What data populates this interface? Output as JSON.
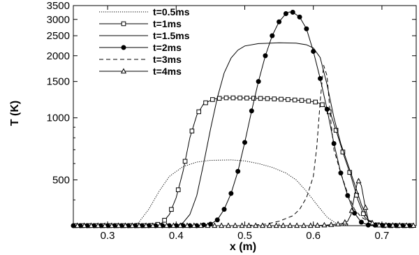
{
  "chart_data": {
    "type": "line",
    "xlabel": "x (m)",
    "ylabel": "T (K)",
    "xlim": [
      0.25,
      0.75
    ],
    "ylim": [
      300,
      3500
    ],
    "yscale": "log",
    "x_ticks": [
      0.3,
      0.4,
      0.5,
      0.6,
      0.7
    ],
    "y_ticks": [
      500,
      1000,
      1500,
      2000,
      2500,
      3000,
      3500
    ],
    "legend_position": "top-left",
    "grid": false,
    "series": [
      {
        "name": "t=0.5ms",
        "style": "dotted",
        "marker": "none",
        "points": [
          [
            0.25,
            300
          ],
          [
            0.33,
            300
          ],
          [
            0.345,
            310
          ],
          [
            0.36,
            360
          ],
          [
            0.375,
            440
          ],
          [
            0.39,
            520
          ],
          [
            0.41,
            580
          ],
          [
            0.43,
            610
          ],
          [
            0.45,
            622
          ],
          [
            0.48,
            625
          ],
          [
            0.5,
            618
          ],
          [
            0.52,
            600
          ],
          [
            0.54,
            575
          ],
          [
            0.56,
            540
          ],
          [
            0.575,
            500
          ],
          [
            0.59,
            440
          ],
          [
            0.605,
            380
          ],
          [
            0.62,
            330
          ],
          [
            0.635,
            305
          ],
          [
            0.65,
            300
          ],
          [
            0.75,
            300
          ]
        ]
      },
      {
        "name": "t=1ms",
        "style": "solid",
        "marker": "square",
        "points": [
          [
            0.25,
            300
          ],
          [
            0.36,
            300
          ],
          [
            0.37,
            302
          ],
          [
            0.38,
            310
          ],
          [
            0.39,
            340
          ],
          [
            0.4,
            410
          ],
          [
            0.41,
            550
          ],
          [
            0.42,
            800
          ],
          [
            0.43,
            1030
          ],
          [
            0.44,
            1170
          ],
          [
            0.455,
            1235
          ],
          [
            0.47,
            1250
          ],
          [
            0.5,
            1248
          ],
          [
            0.53,
            1240
          ],
          [
            0.56,
            1228
          ],
          [
            0.59,
            1210
          ],
          [
            0.605,
            1190
          ],
          [
            0.615,
            1150
          ],
          [
            0.625,
            1050
          ],
          [
            0.635,
            830
          ],
          [
            0.645,
            650
          ],
          [
            0.655,
            520
          ],
          [
            0.665,
            400
          ],
          [
            0.675,
            330
          ],
          [
            0.685,
            305
          ],
          [
            0.7,
            300
          ],
          [
            0.75,
            300
          ]
        ]
      },
      {
        "name": "t=1.5ms",
        "style": "solid",
        "marker": "none",
        "points": [
          [
            0.25,
            300
          ],
          [
            0.4,
            300
          ],
          [
            0.41,
            310
          ],
          [
            0.42,
            340
          ],
          [
            0.43,
            420
          ],
          [
            0.44,
            600
          ],
          [
            0.45,
            880
          ],
          [
            0.46,
            1250
          ],
          [
            0.47,
            1650
          ],
          [
            0.48,
            1950
          ],
          [
            0.49,
            2130
          ],
          [
            0.5,
            2230
          ],
          [
            0.52,
            2290
          ],
          [
            0.55,
            2310
          ],
          [
            0.575,
            2300
          ],
          [
            0.59,
            2260
          ],
          [
            0.6,
            2180
          ],
          [
            0.61,
            1960
          ],
          [
            0.62,
            1450
          ],
          [
            0.63,
            1000
          ],
          [
            0.64,
            750
          ],
          [
            0.65,
            600
          ],
          [
            0.66,
            480
          ],
          [
            0.67,
            380
          ],
          [
            0.68,
            320
          ],
          [
            0.69,
            302
          ],
          [
            0.75,
            300
          ]
        ]
      },
      {
        "name": "t=2ms",
        "style": "solid",
        "marker": "circle",
        "points": [
          [
            0.25,
            300
          ],
          [
            0.43,
            300
          ],
          [
            0.45,
            305
          ],
          [
            0.46,
            320
          ],
          [
            0.47,
            360
          ],
          [
            0.48,
            430
          ],
          [
            0.49,
            550
          ],
          [
            0.5,
            760
          ],
          [
            0.51,
            1080
          ],
          [
            0.52,
            1500
          ],
          [
            0.53,
            2000
          ],
          [
            0.54,
            2500
          ],
          [
            0.55,
            2920
          ],
          [
            0.56,
            3200
          ],
          [
            0.565,
            3260
          ],
          [
            0.57,
            3250
          ],
          [
            0.58,
            3080
          ],
          [
            0.59,
            2700
          ],
          [
            0.6,
            2100
          ],
          [
            0.61,
            1550
          ],
          [
            0.62,
            1100
          ],
          [
            0.63,
            750
          ],
          [
            0.64,
            540
          ],
          [
            0.65,
            420
          ],
          [
            0.66,
            345
          ],
          [
            0.67,
            312
          ],
          [
            0.68,
            302
          ],
          [
            0.75,
            300
          ]
        ]
      },
      {
        "name": "t=3ms",
        "style": "dashed",
        "marker": "none",
        "points": [
          [
            0.25,
            300
          ],
          [
            0.5,
            300
          ],
          [
            0.53,
            305
          ],
          [
            0.55,
            315
          ],
          [
            0.57,
            335
          ],
          [
            0.58,
            360
          ],
          [
            0.59,
            410
          ],
          [
            0.6,
            520
          ],
          [
            0.605,
            720
          ],
          [
            0.61,
            1200
          ],
          [
            0.615,
            1800
          ],
          [
            0.62,
            1600
          ],
          [
            0.625,
            1000
          ],
          [
            0.63,
            700
          ],
          [
            0.64,
            540
          ],
          [
            0.65,
            430
          ],
          [
            0.66,
            360
          ],
          [
            0.67,
            330
          ],
          [
            0.68,
            315
          ],
          [
            0.7,
            305
          ],
          [
            0.75,
            300
          ]
        ]
      },
      {
        "name": "t=4ms",
        "style": "solid",
        "marker": "triangle",
        "points": [
          [
            0.25,
            300
          ],
          [
            0.6,
            300
          ],
          [
            0.62,
            302
          ],
          [
            0.64,
            306
          ],
          [
            0.65,
            315
          ],
          [
            0.655,
            340
          ],
          [
            0.66,
            420
          ],
          [
            0.665,
            500
          ],
          [
            0.67,
            470
          ],
          [
            0.675,
            380
          ],
          [
            0.68,
            320
          ],
          [
            0.69,
            302
          ],
          [
            0.75,
            300
          ]
        ]
      }
    ]
  }
}
